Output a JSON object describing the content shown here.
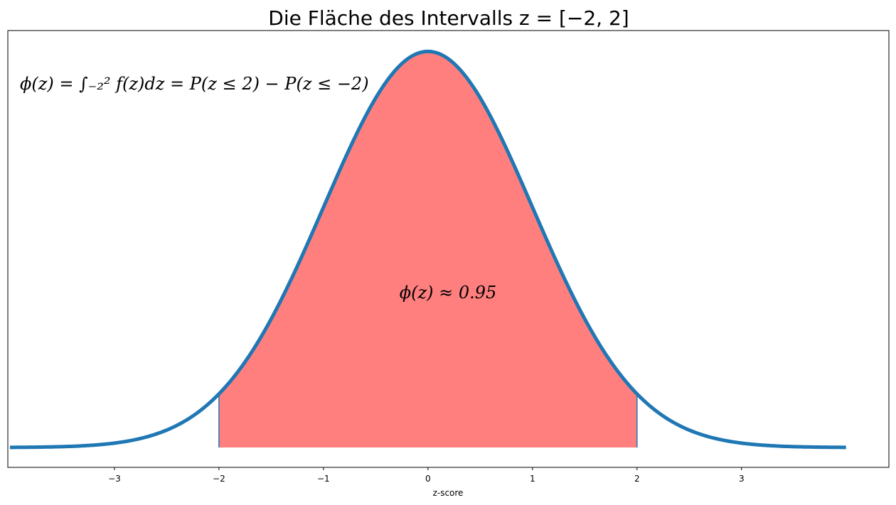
{
  "chart_data": {
    "type": "area",
    "title": "Die Fläche des Intervalls z = [−2, 2]",
    "xlabel": "z-score",
    "ylabel": "",
    "xlim": [
      -4.02,
      4.41
    ],
    "ylim": [
      -0.02,
      0.42
    ],
    "x_ticks": [
      -3,
      -2,
      -1,
      0,
      1,
      2,
      3
    ],
    "x_tick_labels": [
      "−3",
      "−2",
      "−1",
      "0",
      "1",
      "2",
      "3"
    ],
    "curve": {
      "name": "standard normal pdf f(z)",
      "x_min": -4,
      "x_max": 4,
      "mean": 0,
      "std": 1
    },
    "shaded_interval": [
      -2,
      2
    ],
    "formula": "ϕ(z) = ∫₋₂² f(z)dz = P(z ≤ 2) − P(z ≤ −2)",
    "annotation": "ϕ(z) ≈ 0.95",
    "grid": false,
    "colors": {
      "line": "#1f77b4",
      "fill": "#ff7f7f",
      "edge": "#1f77b4"
    }
  }
}
